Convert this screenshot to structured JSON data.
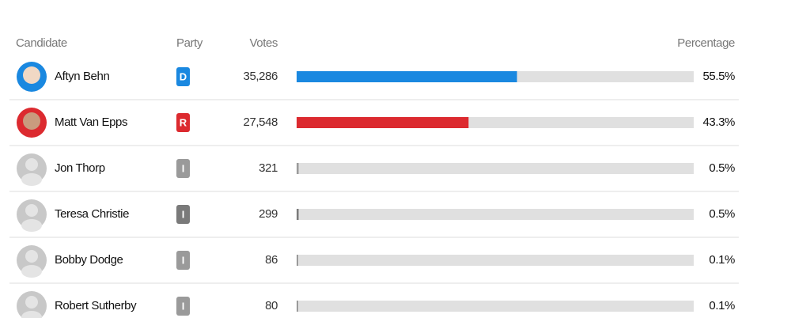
{
  "table": {
    "headers": [
      "Candidate",
      "Party",
      "Votes",
      "Percentage"
    ],
    "rows": [
      {
        "name": "Aftyn Behn",
        "party": "D",
        "votes": "35,286",
        "percentage": {
          "value": 55.5,
          "label": "55.5%"
        },
        "color": "#1a88e0"
      },
      {
        "name": "Matt Van Epps",
        "party": "R",
        "votes": "27,548",
        "percentage": {
          "value": 43.3,
          "label": "43.3%"
        },
        "color": "#dc2a2f"
      },
      {
        "name": "Jon Thorp",
        "party": "I",
        "votes": "321",
        "percentage": {
          "value": 0.5,
          "label": "0.5%"
        },
        "color": "#9a9a9a"
      },
      {
        "name": "Teresa Christie",
        "party": "I",
        "votes": "299",
        "percentage": {
          "value": 0.5,
          "label": "0.5%"
        },
        "color": "#7a7a7a"
      },
      {
        "name": "Bobby Dodge",
        "party": "I",
        "votes": "86",
        "percentage": {
          "value": 0.1,
          "label": "0.1%"
        },
        "color": "#9a9a9a"
      },
      {
        "name": "Robert Sutherby",
        "party": "I",
        "votes": "80",
        "percentage": {
          "value": 0.1,
          "label": "0.1%"
        },
        "color": "#9a9a9a"
      }
    ]
  }
}
